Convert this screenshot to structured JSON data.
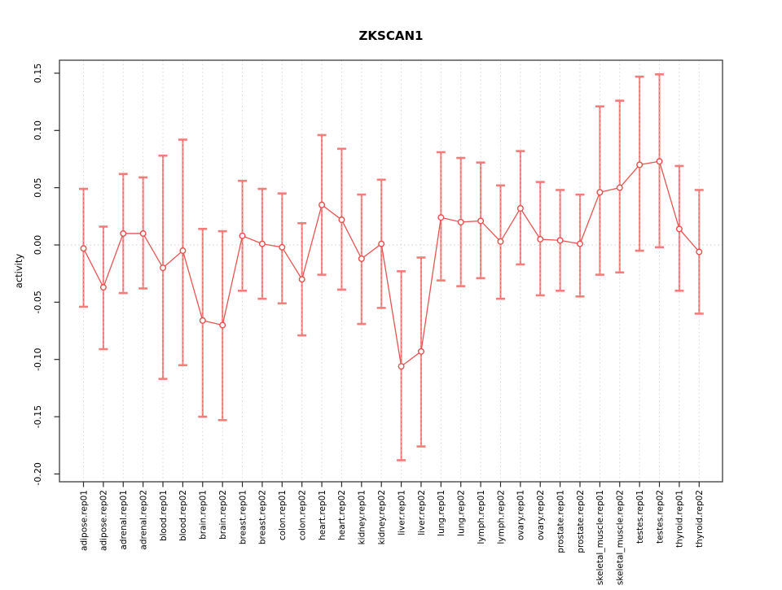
{
  "figure": {
    "title": "ZKSCAN1",
    "ylabel": "activity"
  },
  "chart_data": {
    "type": "errorbar-line",
    "title": "ZKSCAN1",
    "xlabel": "",
    "ylabel": "activity",
    "legend": "none",
    "grid": {
      "vertical_dotted_per_category": true,
      "zero_line_dotted": true
    },
    "ylim": [
      -0.207,
      0.161
    ],
    "yticks": [
      0.15,
      0.1,
      0.05,
      0.0,
      -0.05,
      -0.1,
      -0.15,
      -0.2
    ],
    "ytick_labels": [
      "0.15",
      "0.10",
      "0.05",
      "0.00",
      "-0.05",
      "-0.10",
      "-0.15",
      "-0.20"
    ],
    "categories": [
      "adipose.rep01",
      "adipose.rep02",
      "adrenal.rep01",
      "adrenal.rep02",
      "blood.rep01",
      "blood.rep02",
      "brain.rep01",
      "brain.rep02",
      "breast.rep01",
      "breast.rep02",
      "colon.rep01",
      "colon.rep02",
      "heart.rep01",
      "heart.rep02",
      "kidney.rep01",
      "kidney.rep02",
      "liver.rep01",
      "liver.rep02",
      "lung.rep01",
      "lung.rep02",
      "lymph.rep01",
      "lymph.rep02",
      "ovary.rep01",
      "ovary.rep02",
      "prostate.rep01",
      "prostate.rep02",
      "skeletal_muscle.rep01",
      "skeletal_muscle.rep02",
      "testes.rep01",
      "testes.rep02",
      "thyroid.rep01",
      "thyroid.rep02"
    ],
    "series": [
      {
        "name": "activity",
        "values": [
          -0.003,
          -0.037,
          0.01,
          0.01,
          -0.02,
          -0.005,
          -0.066,
          -0.07,
          0.008,
          0.001,
          -0.002,
          -0.03,
          0.035,
          0.022,
          -0.012,
          0.001,
          -0.106,
          -0.093,
          0.024,
          0.02,
          0.021,
          0.003,
          0.032,
          0.005,
          0.004,
          0.001,
          0.046,
          0.05,
          0.07,
          0.073,
          0.014,
          -0.006
        ],
        "ci_high": [
          0.049,
          0.016,
          0.062,
          0.059,
          0.078,
          0.092,
          0.014,
          0.012,
          0.056,
          0.049,
          0.045,
          0.019,
          0.096,
          0.084,
          0.044,
          0.057,
          -0.023,
          -0.011,
          0.081,
          0.076,
          0.072,
          0.052,
          0.082,
          0.055,
          0.048,
          0.044,
          0.121,
          0.126,
          0.147,
          0.149,
          0.069,
          0.048
        ],
        "ci_low": [
          -0.054,
          -0.091,
          -0.042,
          -0.038,
          -0.117,
          -0.105,
          -0.15,
          -0.153,
          -0.04,
          -0.047,
          -0.051,
          -0.079,
          -0.026,
          -0.039,
          -0.069,
          -0.055,
          -0.188,
          -0.176,
          -0.031,
          -0.036,
          -0.029,
          -0.047,
          -0.017,
          -0.044,
          -0.04,
          -0.045,
          -0.026,
          -0.024,
          -0.005,
          -0.002,
          -0.04,
          -0.06
        ]
      }
    ],
    "colors": {
      "point": "#e4504c",
      "series_line": "#e85451",
      "error_bar": "#f47c7a",
      "error_bar_dash": "#e0403c",
      "grid": "#d6d6d6",
      "zero_line": "#cfcfcf",
      "box": "#4a4a4a",
      "tick": "#2a2a2a",
      "text": "#000000"
    }
  }
}
